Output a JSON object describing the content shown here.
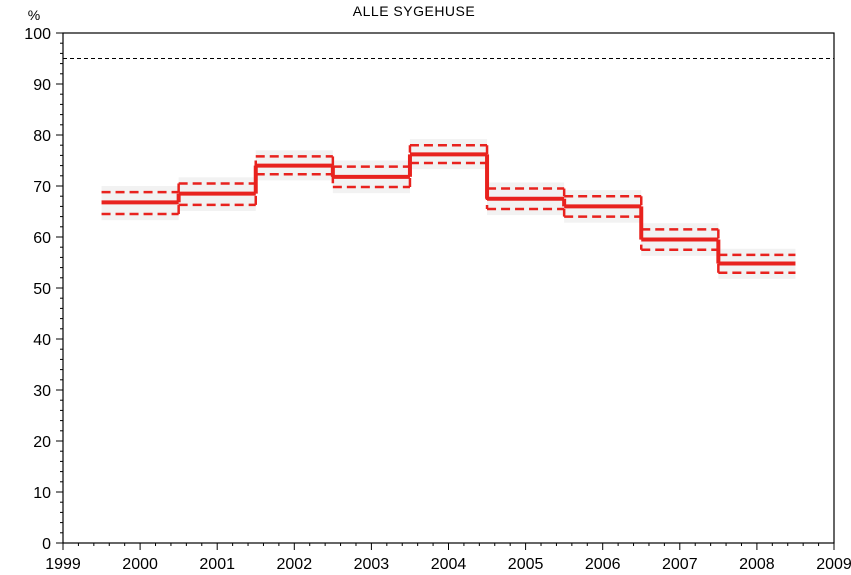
{
  "chart_data": {
    "type": "line",
    "title": "ALLE SYGEHUSE",
    "ylabel": "%",
    "xlabel": "",
    "xlim": [
      1999,
      2009
    ],
    "ylim": [
      0,
      100
    ],
    "x_ticks": [
      1999,
      2000,
      2001,
      2002,
      2003,
      2004,
      2005,
      2006,
      2007,
      2008,
      2009
    ],
    "y_ticks": [
      0,
      10,
      20,
      30,
      40,
      50,
      60,
      70,
      80,
      90,
      100
    ],
    "reference_line": {
      "y": 95,
      "style": "dashed",
      "color": "#000000"
    },
    "series": [
      {
        "style": "step",
        "color": "#e8221e",
        "x": [
          2000,
          2001,
          2002,
          2003,
          2004,
          2005,
          2006,
          2007,
          2008
        ],
        "values": [
          66.8,
          68.5,
          74.0,
          71.8,
          76.2,
          67.5,
          66.0,
          59.5,
          54.8
        ],
        "ci_lower": [
          64.5,
          66.3,
          72.3,
          69.8,
          74.5,
          65.5,
          64.0,
          57.5,
          53.0
        ],
        "ci_upper": [
          68.8,
          70.5,
          75.8,
          73.8,
          78.0,
          69.5,
          68.0,
          61.5,
          56.5
        ]
      }
    ]
  }
}
